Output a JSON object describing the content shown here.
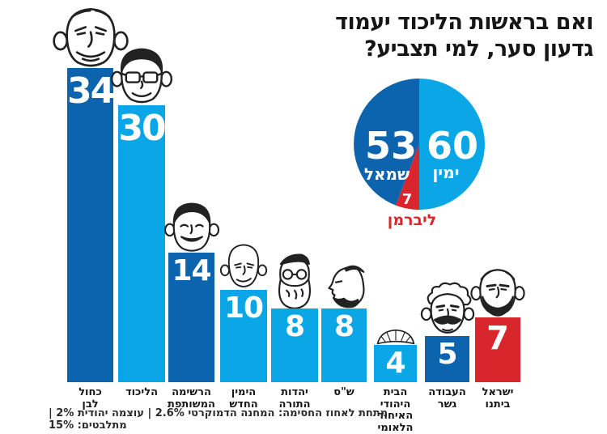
{
  "title": "ואם בראשות הליכוד יעמוד\nגדעון סער, למי תצביע?",
  "footnote": "מתחת לאחוז החסימה: המחנה הדמוקרטי 2.6% | עוצמה יהודית 2% | מתלבטים: 15%",
  "colors": {
    "light_blue": "#0aa6e6",
    "dark_blue": "#0b64ad",
    "red": "#d9262c",
    "text": "#161616",
    "white": "#ffffff"
  },
  "chart_data": [
    {
      "type": "bar",
      "title": "ואם בראשות הליכוד יעמוד גדעון סער, למי תצביע?",
      "categories": [
        "כחול\nלבן",
        "הליכוד",
        "הרשימה\nהמשותפת",
        "הימין\nהחדש",
        "יהדות\nהתורה",
        "ש\"ס",
        "הבית\nהיהודי\nהאיחוד\nהלאומי",
        "העבודה\nגשר",
        "ישראל\nביתנו"
      ],
      "values": [
        34,
        30,
        14,
        10,
        8,
        8,
        4,
        5,
        7
      ],
      "bar_colors": [
        "dark_blue",
        "light_blue",
        "dark_blue",
        "light_blue",
        "light_blue",
        "light_blue",
        "light_blue",
        "dark_blue",
        "red"
      ],
      "caricatures": [
        "benny-gantz-face",
        "gideon-saar-face",
        "ayman-odeh-face",
        "bald-man-face",
        "haredi-litzman-face",
        "aryeh-deri-profile",
        "knitted-kippah",
        "amir-peretz-face",
        "avigdor-liberman-face"
      ],
      "xlabel": "",
      "ylabel": "",
      "ylim": [
        0,
        34
      ],
      "grid": false
    },
    {
      "type": "pie",
      "labels": [
        "ימין",
        "שמאל",
        "ליברמן"
      ],
      "values": [
        60,
        53,
        7
      ],
      "slice_colors": [
        "light_blue",
        "dark_blue",
        "red"
      ],
      "total": 120
    }
  ]
}
